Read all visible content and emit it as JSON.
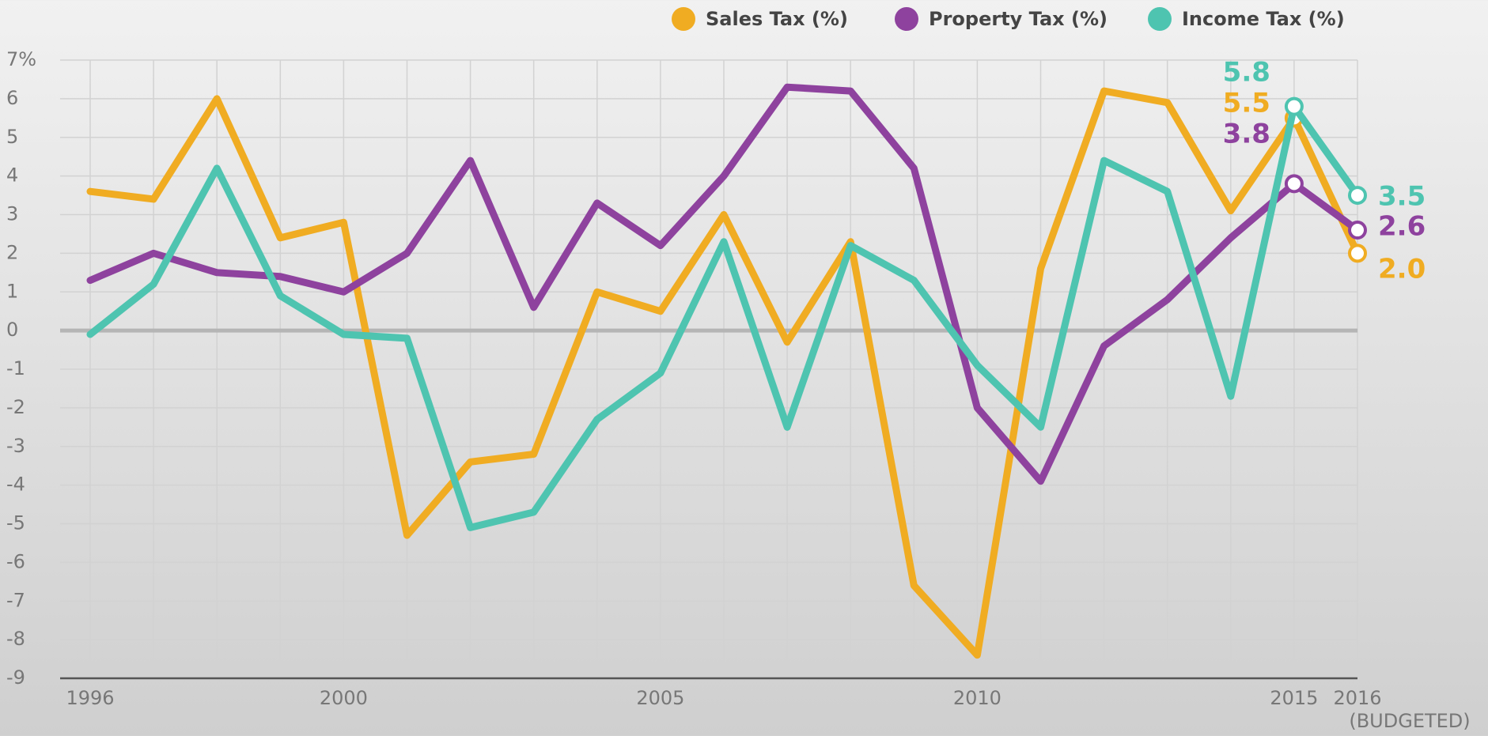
{
  "chart_data": {
    "type": "line",
    "x": [
      1996,
      1997,
      1998,
      1999,
      2000,
      2001,
      2002,
      2003,
      2004,
      2005,
      2006,
      2007,
      2008,
      2009,
      2010,
      2011,
      2012,
      2013,
      2014,
      2015,
      2016
    ],
    "xlim": [
      1996,
      2016
    ],
    "xticks": [
      1996,
      2000,
      2005,
      2010,
      2015,
      2016
    ],
    "x_note": "(BUDGETED)",
    "ylim": [
      -9,
      7
    ],
    "yticks": [
      {
        "value": 7,
        "label": "7%"
      },
      6,
      5,
      4,
      3,
      2,
      1,
      0,
      -1,
      -2,
      -3,
      -4,
      -5,
      -6,
      -7,
      -8,
      -9
    ],
    "grid": true,
    "legend": "top-right",
    "series": [
      {
        "name": "Sales Tax (%)",
        "color": "#f0ac22",
        "values": [
          3.6,
          3.4,
          6.0,
          2.4,
          2.8,
          -5.3,
          -3.4,
          -3.2,
          1.0,
          0.5,
          3.0,
          -0.3,
          2.3,
          -6.6,
          -8.4,
          1.6,
          6.2,
          5.9,
          3.1,
          5.5,
          2.0
        ],
        "value_labels": [
          null,
          null,
          null,
          null,
          null,
          null,
          null,
          null,
          null,
          null,
          null,
          null,
          null,
          null,
          null,
          null,
          null,
          null,
          null,
          "5.5",
          "2.0"
        ]
      },
      {
        "name": "Property Tax (%)",
        "color": "#8e429e",
        "values": [
          1.3,
          2.0,
          1.5,
          1.4,
          1.0,
          2.0,
          4.4,
          0.6,
          3.3,
          2.2,
          4.0,
          6.3,
          6.2,
          4.2,
          -2.0,
          -3.9,
          -0.4,
          0.8,
          2.4,
          3.8,
          2.6
        ],
        "value_labels": [
          null,
          null,
          null,
          null,
          null,
          null,
          null,
          null,
          null,
          null,
          null,
          null,
          null,
          null,
          null,
          null,
          null,
          null,
          null,
          "3.8",
          "2.6"
        ]
      },
      {
        "name": "Income Tax (%)",
        "color": "#4ec4b0",
        "values": [
          -0.1,
          1.2,
          4.2,
          0.9,
          -0.1,
          -0.2,
          -5.1,
          -4.7,
          -2.3,
          -1.1,
          2.3,
          -2.5,
          2.2,
          1.3,
          -0.9,
          -2.5,
          4.4,
          3.6,
          -1.7,
          5.8,
          3.5
        ],
        "value_labels": [
          null,
          null,
          null,
          null,
          null,
          null,
          null,
          null,
          null,
          null,
          null,
          null,
          null,
          null,
          null,
          null,
          null,
          null,
          null,
          "5.8",
          "3.5"
        ]
      }
    ]
  }
}
